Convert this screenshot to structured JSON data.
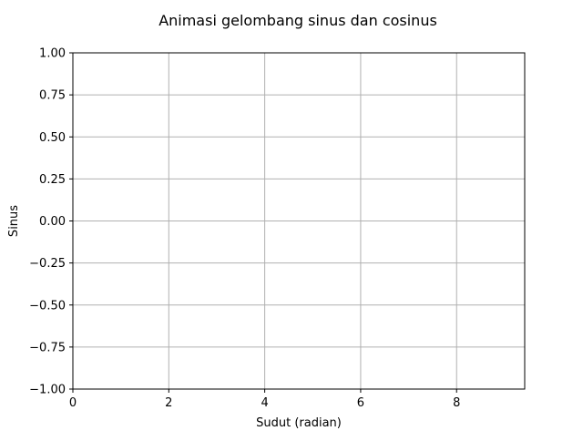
{
  "chart_data": {
    "type": "line",
    "title": "Animasi gelombang sinus dan cosinus",
    "xlabel": "Sudut (radian)",
    "ylabel": "Sinus",
    "xlim": [
      0,
      9.42
    ],
    "ylim": [
      -1.0,
      1.0
    ],
    "xticks": [
      {
        "value": 0,
        "label": "0"
      },
      {
        "value": 2,
        "label": "2"
      },
      {
        "value": 4,
        "label": "4"
      },
      {
        "value": 6,
        "label": "6"
      },
      {
        "value": 8,
        "label": "8"
      }
    ],
    "yticks": [
      {
        "value": 1.0,
        "label": "1.00"
      },
      {
        "value": 0.75,
        "label": "0.75"
      },
      {
        "value": 0.5,
        "label": "0.50"
      },
      {
        "value": 0.25,
        "label": "0.25"
      },
      {
        "value": 0.0,
        "label": "0.00"
      },
      {
        "value": -0.25,
        "label": "−0.25"
      },
      {
        "value": -0.5,
        "label": "−0.50"
      },
      {
        "value": -0.75,
        "label": "−0.75"
      },
      {
        "value": -1.0,
        "label": "−1.00"
      }
    ],
    "grid": true,
    "series": [],
    "colors": {
      "axes": "#000000",
      "grid": "#b0b0b0",
      "background": "#ffffff"
    }
  }
}
